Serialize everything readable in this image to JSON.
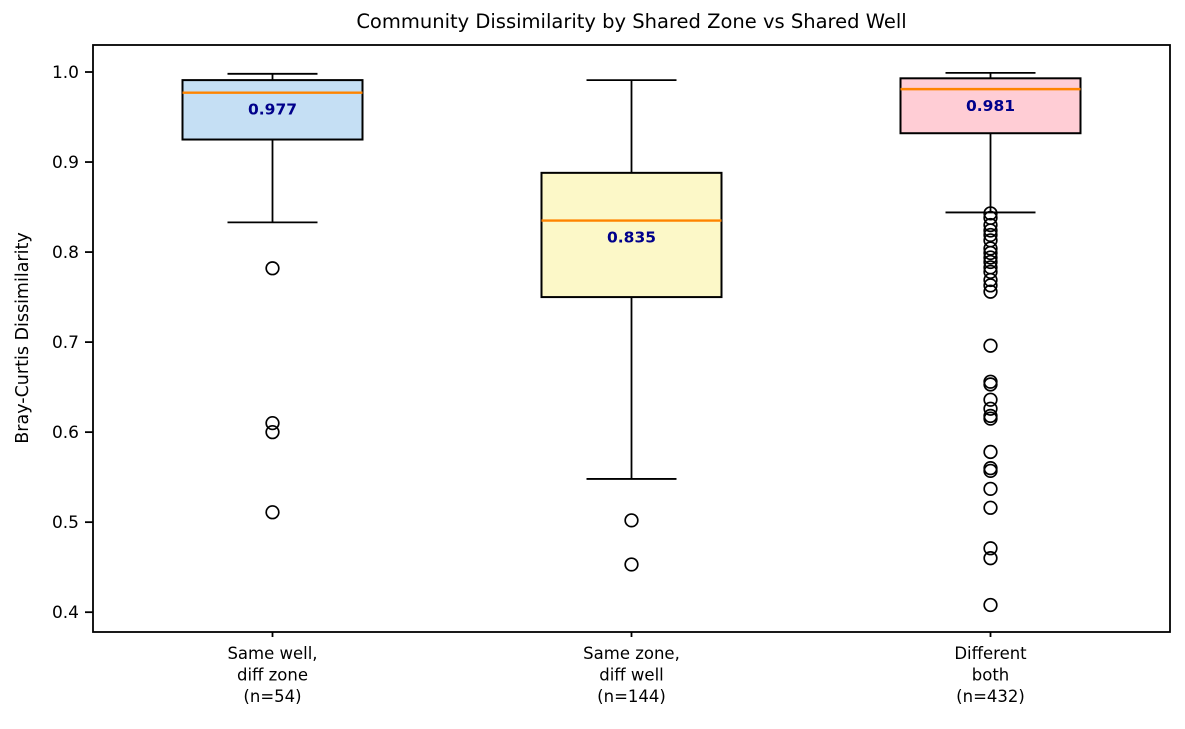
{
  "chart_data": {
    "type": "boxplot",
    "title": "Community Dissimilarity by Shared Zone vs Shared Well",
    "ylabel": "Bray-Curtis Dissimilarity",
    "xlabel": "",
    "ylim": [
      0.378,
      1.03
    ],
    "yticks": [
      1.0,
      0.9,
      0.8,
      0.7,
      0.6,
      0.5,
      0.4
    ],
    "ytick_labels": [
      "1.0",
      "0.9",
      "0.8",
      "0.7",
      "0.6",
      "0.5",
      "0.4"
    ],
    "grid": false,
    "legend": "none",
    "colors": {
      "median_line": "#ff8400",
      "median_text": "#00008b",
      "box_edge": "#000000",
      "whisker": "#000000",
      "outlier_edge": "#000000",
      "axis": "#000000"
    },
    "groups": [
      {
        "label_lines": [
          "Same well,",
          "diff zone",
          "(n=54)"
        ],
        "n": 54,
        "fill": "#c5dff4",
        "median": 0.977,
        "median_label": "0.977",
        "q1": 0.925,
        "q3": 0.991,
        "whisker_low": 0.833,
        "whisker_high": 0.998,
        "outliers": [
          0.782,
          0.61,
          0.6,
          0.511
        ]
      },
      {
        "label_lines": [
          "Same zone,",
          "diff well",
          "(n=144)"
        ],
        "n": 144,
        "fill": "#fcf8c8",
        "median": 0.835,
        "median_label": "0.835",
        "q1": 0.75,
        "q3": 0.888,
        "whisker_low": 0.548,
        "whisker_high": 0.991,
        "outliers": [
          0.502,
          0.453
        ]
      },
      {
        "label_lines": [
          "Different",
          "both",
          "(n=432)"
        ],
        "n": 432,
        "fill": "#ffcdd5",
        "median": 0.981,
        "median_label": "0.981",
        "q1": 0.932,
        "q3": 0.993,
        "whisker_low": 0.844,
        "whisker_high": 0.999,
        "outliers": [
          0.843,
          0.838,
          0.83,
          0.824,
          0.819,
          0.813,
          0.804,
          0.799,
          0.794,
          0.789,
          0.783,
          0.778,
          0.769,
          0.763,
          0.756,
          0.696,
          0.656,
          0.653,
          0.636,
          0.626,
          0.618,
          0.615,
          0.578,
          0.56,
          0.557,
          0.537,
          0.516,
          0.471,
          0.46,
          0.408
        ]
      }
    ]
  }
}
